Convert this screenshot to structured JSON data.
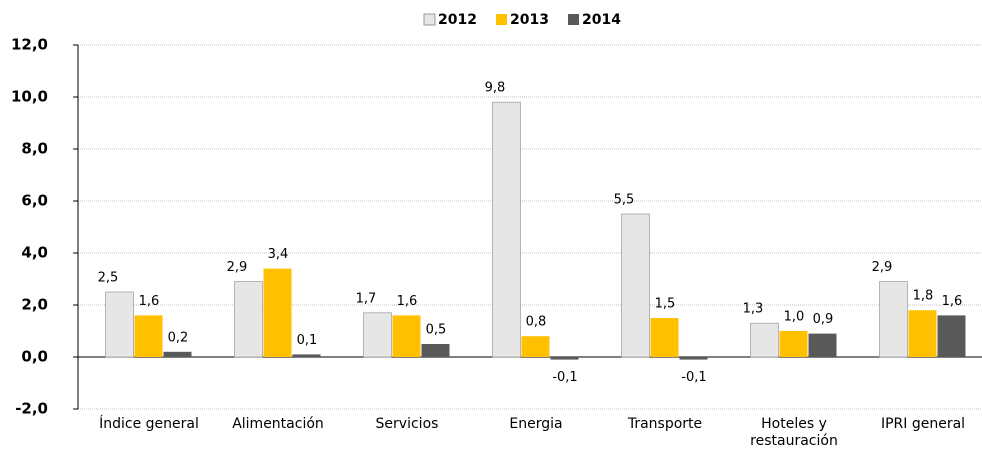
{
  "chart_data": {
    "type": "bar",
    "categories": [
      "Índice general",
      "Alimentación",
      "Servicios",
      "Energia",
      "Transporte",
      "Hoteles y restauración",
      "IPRI general"
    ],
    "series": [
      {
        "name": "2012",
        "color": "#e6e6e6",
        "values": [
          2.5,
          2.9,
          1.7,
          9.8,
          5.5,
          1.3,
          2.9
        ],
        "value_labels": [
          "2,5",
          "2,9",
          "1,7",
          "9,8",
          "5,5",
          "1,3",
          "2,9"
        ]
      },
      {
        "name": "2013",
        "color": "#ffc000",
        "values": [
          1.6,
          3.4,
          1.6,
          0.8,
          1.5,
          1.0,
          1.8
        ],
        "value_labels": [
          "1,6",
          "3,4",
          "1,6",
          "0,8",
          "1,5",
          "1,0",
          "1,8"
        ]
      },
      {
        "name": "2014",
        "color": "#595959",
        "values": [
          0.2,
          0.1,
          0.5,
          -0.1,
          -0.1,
          0.9,
          1.6
        ],
        "value_labels": [
          "0,2",
          "0,1",
          "0,5",
          "-0,1",
          "-0,1",
          "0,9",
          "1,6"
        ]
      }
    ],
    "ylim": [
      -2,
      12
    ],
    "yticks": [
      {
        "value": -2,
        "label": "-2,0"
      },
      {
        "value": 0,
        "label": "0,0"
      },
      {
        "value": 2,
        "label": "2,0"
      },
      {
        "value": 4,
        "label": "4,0"
      },
      {
        "value": 6,
        "label": "6,0"
      },
      {
        "value": 8,
        "label": "8,0"
      },
      {
        "value": 10,
        "label": "10,0"
      },
      {
        "value": 12,
        "label": "12,0"
      }
    ],
    "grid": true,
    "legend": "top"
  }
}
